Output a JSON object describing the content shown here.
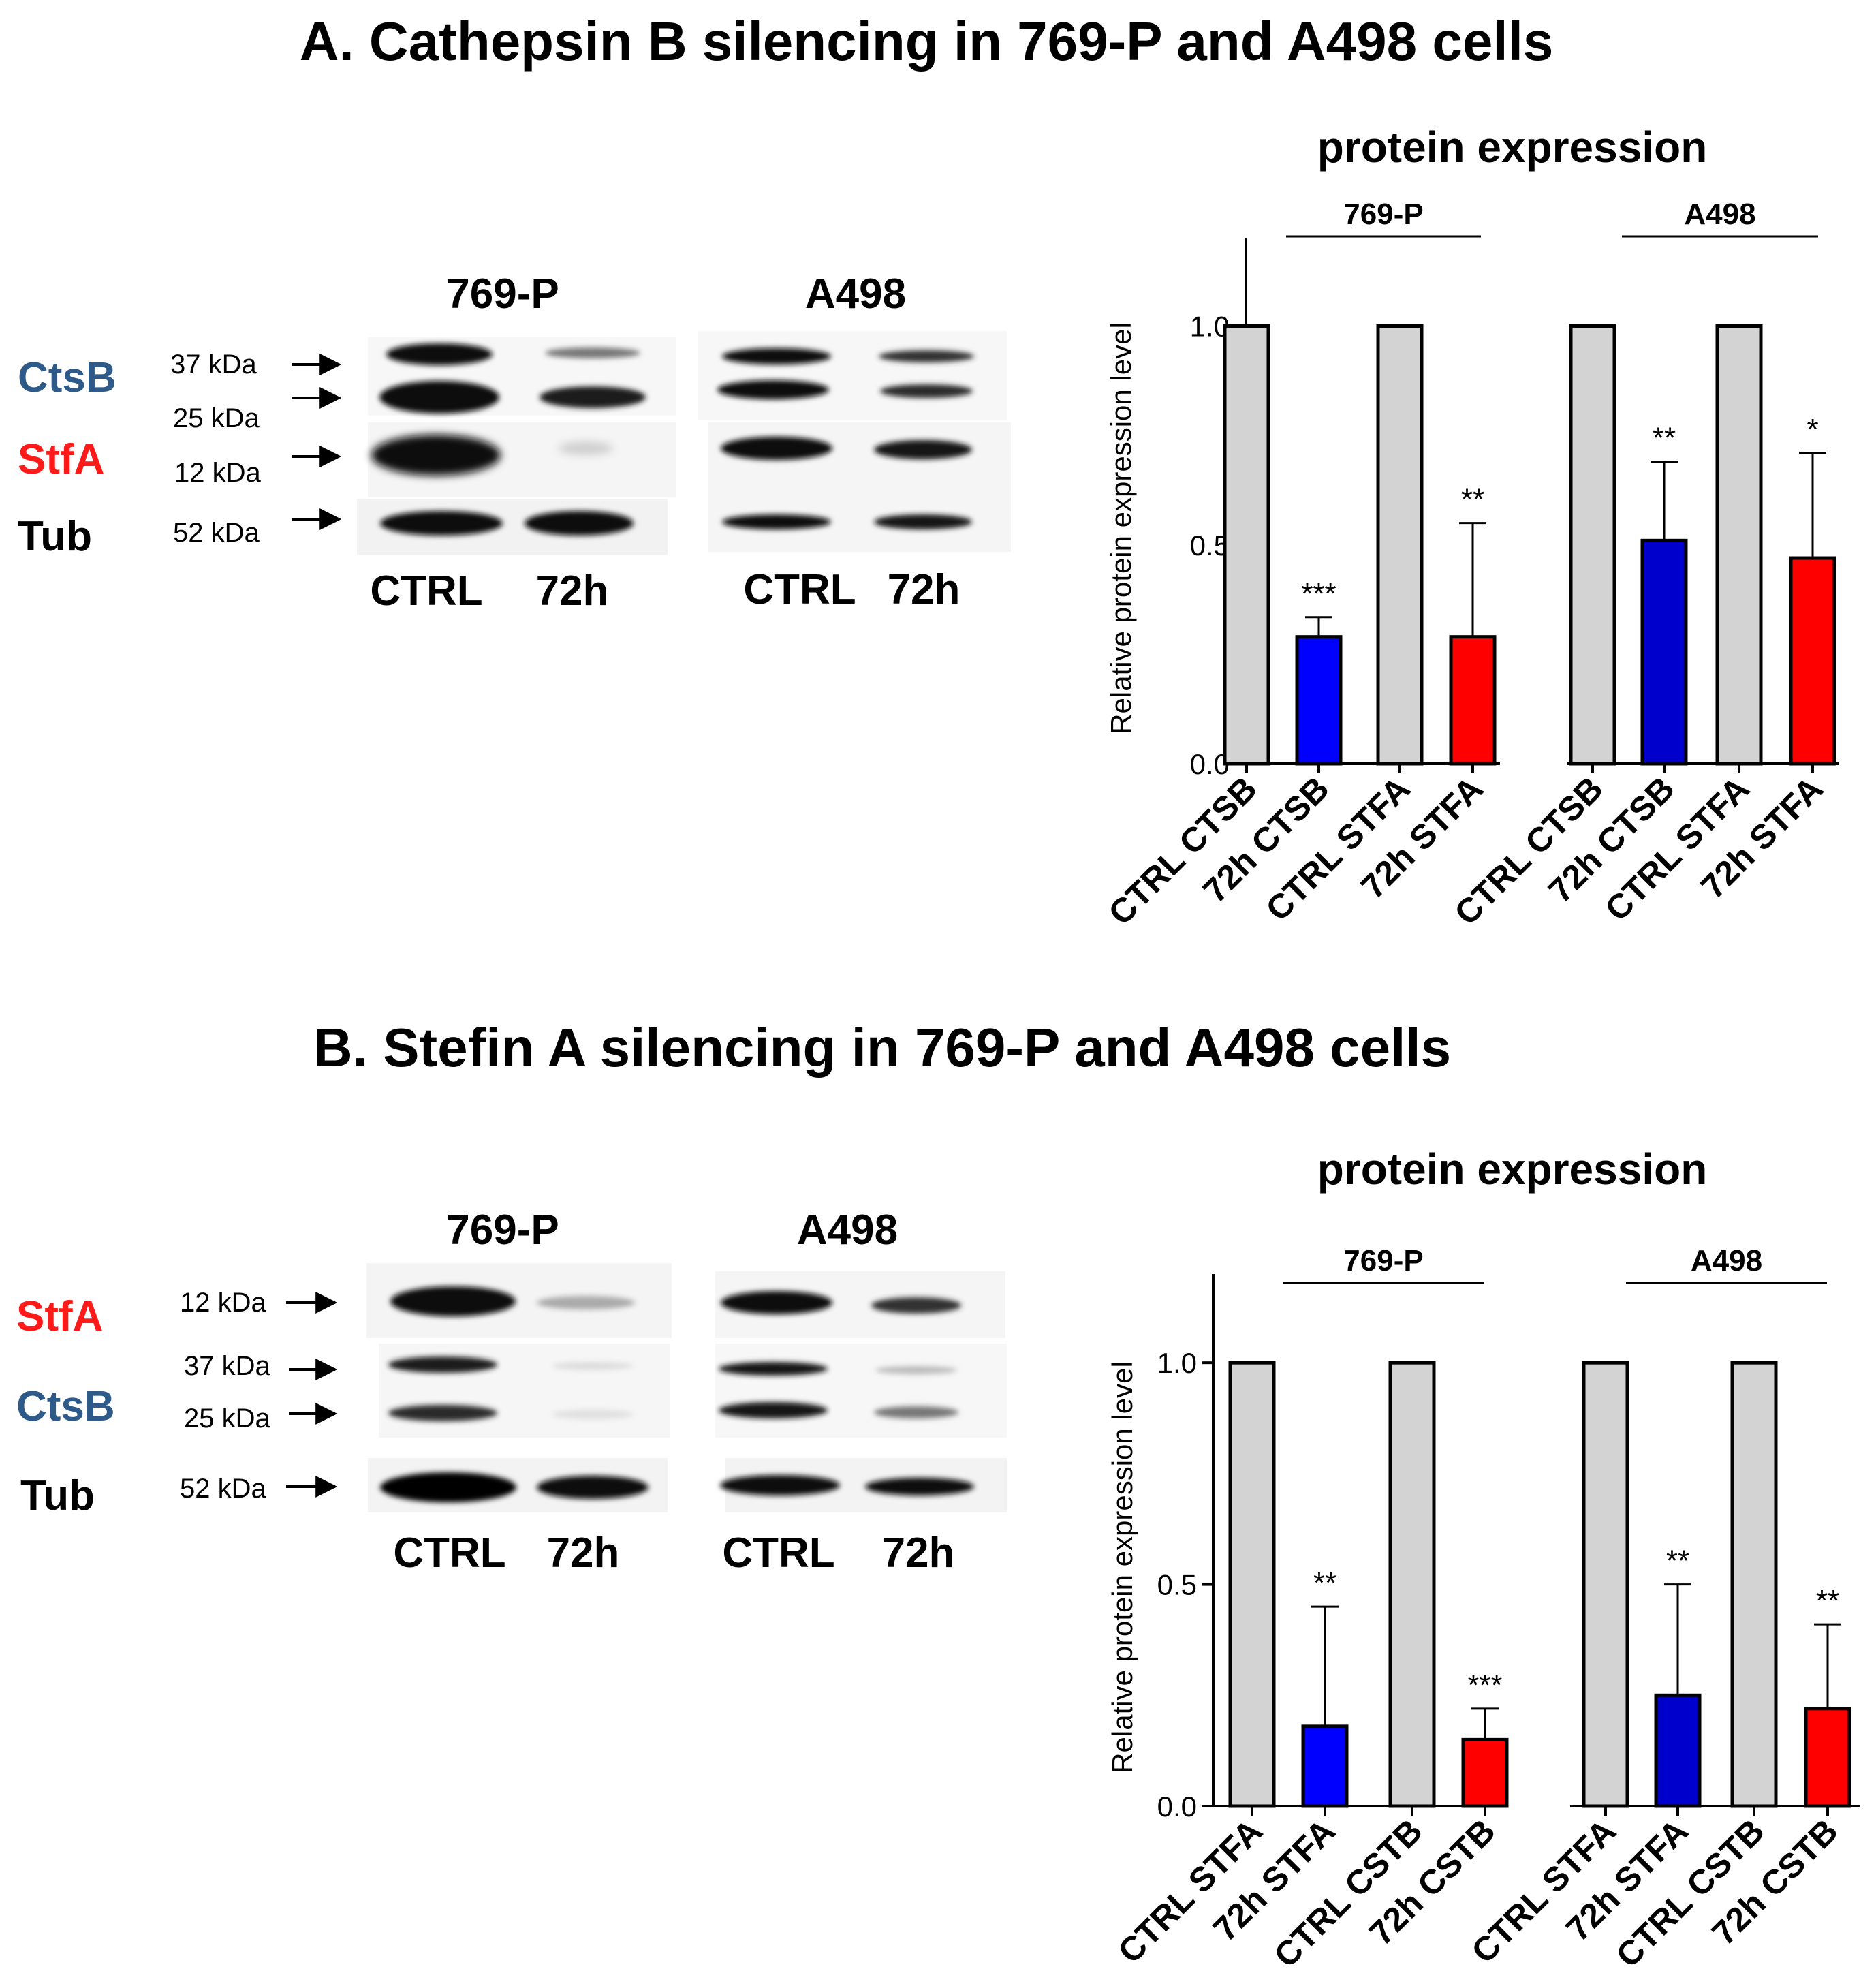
{
  "panel_a": {
    "title": "A. Cathepsin B silencing in 769-P and A498 cells",
    "blot": {
      "lines": [
        "769-P",
        "A498"
      ],
      "proteins": [
        "CtsB",
        "StfA",
        "Tub"
      ],
      "kda": [
        "37 kDa",
        "25 kDa",
        "12 kDa",
        "52 kDa"
      ],
      "lanes": [
        "CTRL",
        "72h"
      ]
    }
  },
  "panel_b": {
    "title": "B. Stefin A silencing in 769-P and A498 cells",
    "blot": {
      "lines": [
        "769-P",
        "A498"
      ],
      "proteins": [
        "StfA",
        "CtsB",
        "Tub"
      ],
      "kda": [
        "12 kDa",
        "37 kDa",
        "25 kDa",
        "52 kDa"
      ],
      "lanes": [
        "CTRL",
        "72h"
      ]
    }
  },
  "colors": {
    "ctsb_label": "#2e5a8a",
    "stfa_label": "#ff1a1a",
    "ctrl_bar": "#d3d3d3",
    "blue_bar_a": "#0000ff",
    "blue_bar_b": "#0000cd",
    "red_bar": "#ff0000"
  },
  "chart_data": [
    {
      "type": "bar",
      "title": "protein expression",
      "ylabel": "Relative protein expression level",
      "ylim": [
        0,
        1.2
      ],
      "yticks": [
        "0.0",
        "0.5",
        "1.0"
      ],
      "groups": [
        "769-P",
        "A498"
      ],
      "categories": [
        "CTRL CTSB",
        "72h CTSB",
        "CTRL STFA",
        "72h STFA",
        "CTRL CTSB",
        "72h CTSB",
        "CTRL STFA",
        "72h STFA"
      ],
      "values": [
        1.0,
        0.29,
        1.0,
        0.29,
        1.0,
        0.51,
        1.0,
        0.47
      ],
      "errors": [
        0,
        0.045,
        0,
        0.26,
        0,
        0.18,
        0,
        0.24
      ],
      "significance": [
        "",
        "***",
        "",
        "**",
        "",
        "**",
        "",
        "*"
      ]
    },
    {
      "type": "bar",
      "title": "protein expression",
      "ylabel": "Relative protein expression level",
      "ylim": [
        0,
        1.2
      ],
      "yticks": [
        "0.0",
        "0.5",
        "1.0"
      ],
      "groups": [
        "769-P",
        "A498"
      ],
      "categories": [
        "CTRL STFA",
        "72h STFA",
        "CTRL CSTB",
        "72h CSTB",
        "CTRL STFA",
        "72h STFA",
        "CTRL CSTB",
        "72h CSTB"
      ],
      "values": [
        1.0,
        0.18,
        1.0,
        0.15,
        1.0,
        0.25,
        1.0,
        0.22
      ],
      "errors": [
        0,
        0.27,
        0,
        0.07,
        0,
        0.25,
        0,
        0.19
      ],
      "significance": [
        "",
        "**",
        "",
        "***",
        "",
        "**",
        "",
        "**"
      ]
    }
  ]
}
